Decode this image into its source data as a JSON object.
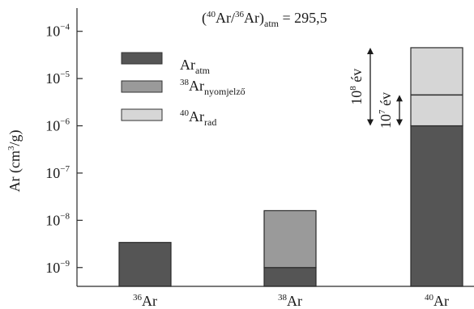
{
  "chart_data": {
    "type": "bar",
    "title_parts": [
      "(",
      "40",
      "Ar/",
      "36",
      "Ar)",
      "atm",
      " = 295,5"
    ],
    "ylabel_parts": [
      "Ar (cm",
      "3",
      "/g)"
    ],
    "y_scale": "log",
    "ylim": [
      4e-10,
      0.00031
    ],
    "y_ticks": [
      {
        "value": 1e-09,
        "base": "10",
        "exp": "−9"
      },
      {
        "value": 1e-08,
        "base": "10",
        "exp": "−8"
      },
      {
        "value": 1e-07,
        "base": "10",
        "exp": "−7"
      },
      {
        "value": 1e-06,
        "base": "10",
        "exp": "−6"
      },
      {
        "value": 1e-05,
        "base": "10",
        "exp": "−5"
      },
      {
        "value": 0.0001,
        "base": "10",
        "exp": "−4"
      }
    ],
    "categories": [
      {
        "sup": "36",
        "base": "Ar"
      },
      {
        "sup": "38",
        "base": "Ar"
      },
      {
        "sup": "40",
        "base": "Ar"
      }
    ],
    "series": [
      {
        "key": "atm",
        "label_base": "Ar",
        "label_sub": "atm",
        "label_sup": "",
        "color": "#555555",
        "values": [
          3e-09,
          6e-10,
          1e-06
        ]
      },
      {
        "key": "nyomjelzo",
        "label_base": "Ar",
        "label_sub": "nyomjelző",
        "label_sup": "38",
        "color": "#9a9a9a",
        "values": [
          0,
          1.5e-08,
          0
        ]
      },
      {
        "key": "rad",
        "label_base": "Ar",
        "label_sub": "rad",
        "label_sup": "40",
        "color": "#d6d6d6",
        "values": [
          0,
          0,
          4.4e-05
        ]
      }
    ],
    "boundary_lines": [
      {
        "category_index": 2,
        "value": 4.5e-06
      }
    ],
    "annotations": [
      {
        "base": "10",
        "sup": "8",
        "text": " év",
        "from": 1e-06,
        "to": 4.5e-05
      },
      {
        "base": "10",
        "sup": "7",
        "text": " év",
        "from": 1e-06,
        "to": 4.5e-06
      }
    ],
    "legend_position": "top-left"
  }
}
